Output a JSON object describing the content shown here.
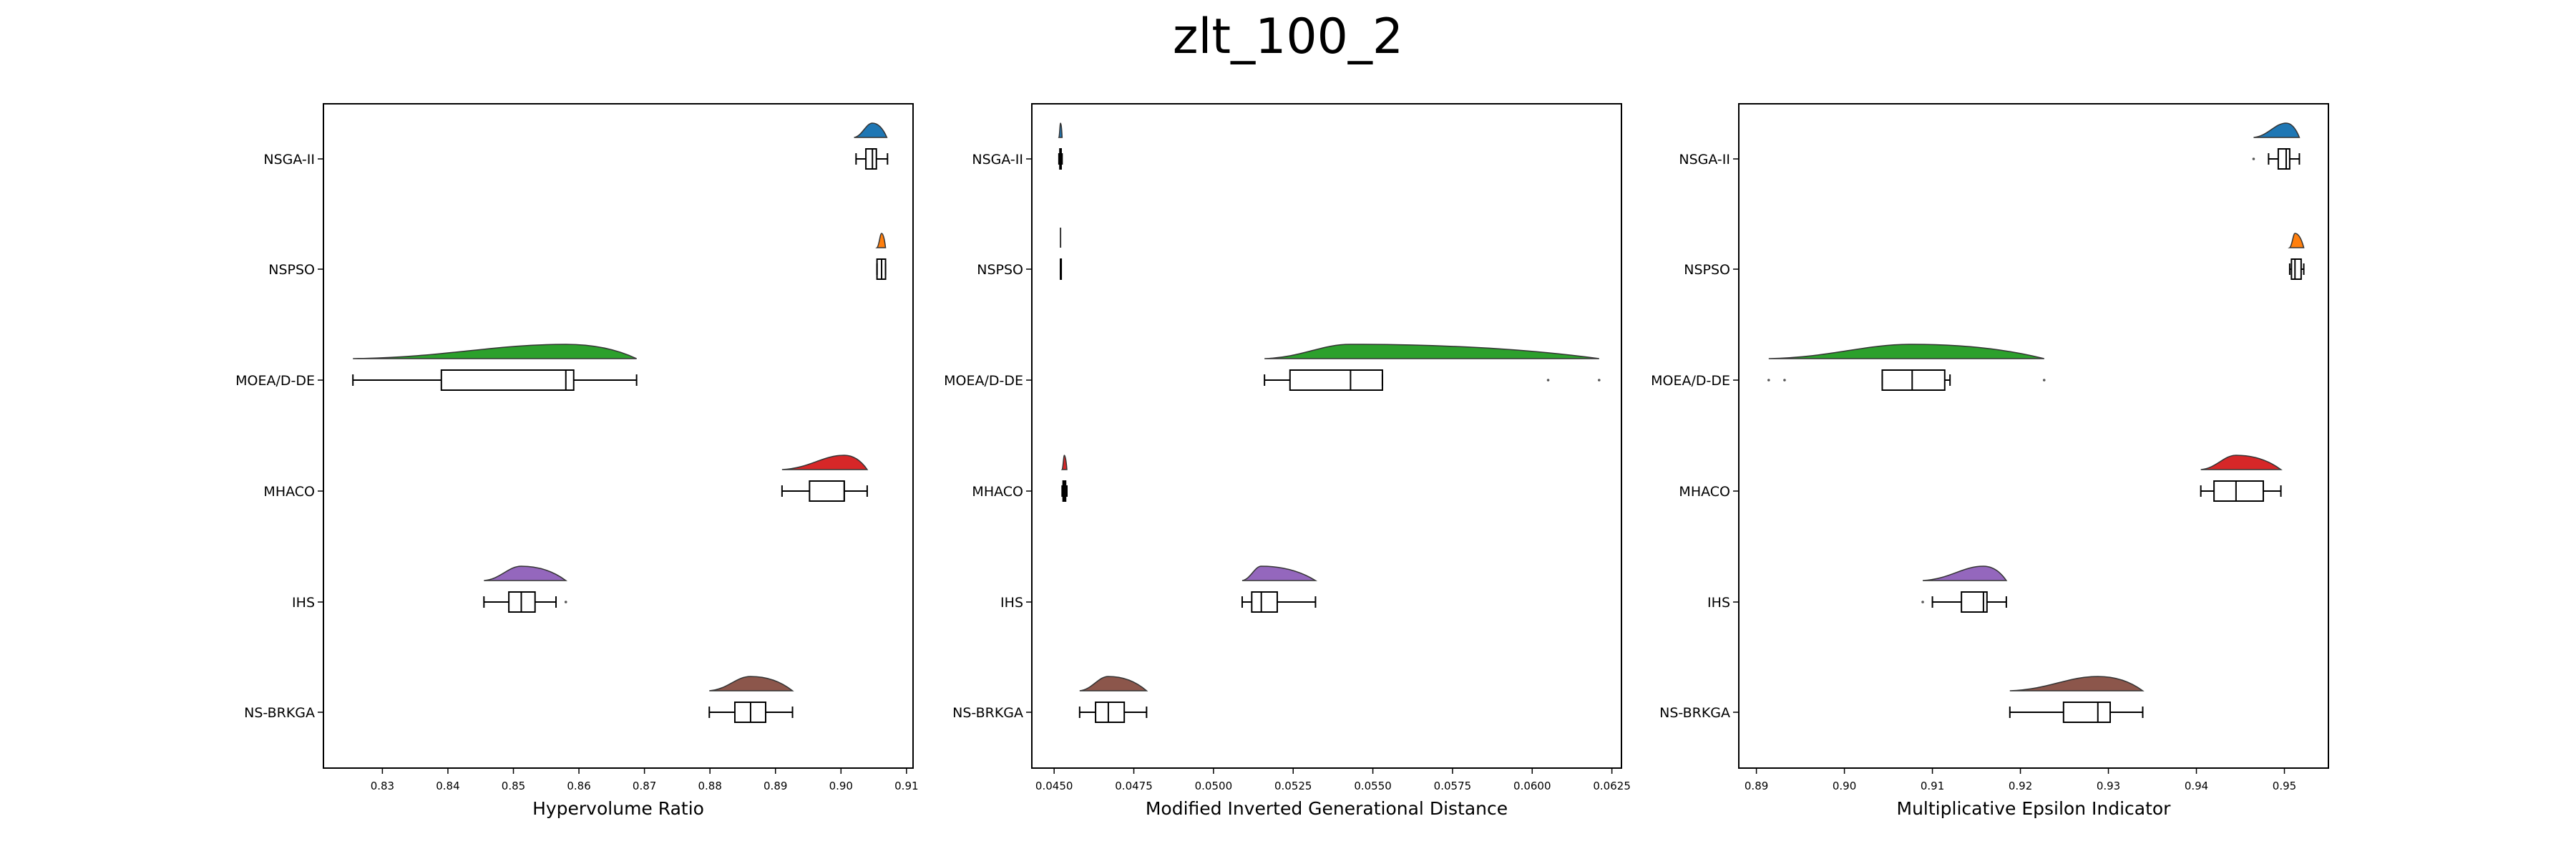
{
  "figure": {
    "title": "zlt_100_2"
  },
  "colors": {
    "NSGA-II": "#1f77b4",
    "NSPSO": "#ff7f0e",
    "MOEA/D-DE": "#2ca02c",
    "MHACO": "#d62728",
    "IHS": "#9467bd",
    "NS-BRKGA": "#8c564b"
  },
  "chart_data": [
    {
      "type": "boxplot",
      "xlabel": "Hypervolume Ratio",
      "ylabel": "",
      "xlim": [
        0.821,
        0.911
      ],
      "xticks": [
        0.83,
        0.84,
        0.85,
        0.86,
        0.87,
        0.88,
        0.89,
        0.9,
        0.91
      ],
      "xtick_labels": [
        "0.83",
        "0.84",
        "0.85",
        "0.86",
        "0.87",
        "0.88",
        "0.89",
        "0.90",
        "0.91"
      ],
      "grid": false,
      "categories": [
        "NSGA-II",
        "NSPSO",
        "MOEA/D-DE",
        "MHACO",
        "IHS",
        "NS-BRKGA"
      ],
      "series": [
        {
          "category": "NSGA-II",
          "whisker_low": 0.9023,
          "q1": 0.9038,
          "median": 0.9048,
          "q3": 0.9054,
          "whisker_high": 0.9071,
          "outliers": [],
          "violin": [
            0.902,
            0.907
          ]
        },
        {
          "category": "NSPSO",
          "whisker_low": 0.9055,
          "q1": 0.9055,
          "median": 0.9062,
          "q3": 0.9068,
          "whisker_high": 0.9068,
          "outliers": [],
          "violin": [
            0.9055,
            0.9068
          ]
        },
        {
          "category": "MOEA/D-DE",
          "whisker_low": 0.8255,
          "q1": 0.839,
          "median": 0.858,
          "q3": 0.8592,
          "whisker_high": 0.8688,
          "outliers": [],
          "violin": [
            0.8255,
            0.8688
          ]
        },
        {
          "category": "MHACO",
          "whisker_low": 0.891,
          "q1": 0.8952,
          "median": 0.9005,
          "q3": 0.9005,
          "whisker_high": 0.904,
          "outliers": [],
          "violin": [
            0.891,
            0.904
          ]
        },
        {
          "category": "IHS",
          "whisker_low": 0.8455,
          "q1": 0.8493,
          "median": 0.8512,
          "q3": 0.8533,
          "whisker_high": 0.8565,
          "outliers": [
            0.858
          ],
          "violin": [
            0.8455,
            0.858
          ]
        },
        {
          "category": "NS-BRKGA",
          "whisker_low": 0.8799,
          "q1": 0.8838,
          "median": 0.8862,
          "q3": 0.8885,
          "whisker_high": 0.8926,
          "outliers": [],
          "violin": [
            0.8799,
            0.8926
          ]
        }
      ]
    },
    {
      "type": "boxplot",
      "xlabel": "Modified Inverted Generational Distance",
      "ylabel": "",
      "xlim": [
        0.0443,
        0.0628
      ],
      "xticks": [
        0.045,
        0.0475,
        0.05,
        0.0525,
        0.055,
        0.0575,
        0.06,
        0.0625
      ],
      "xtick_labels": [
        "0.0450",
        "0.0475",
        "0.0500",
        "0.0525",
        "0.0550",
        "0.0575",
        "0.0600",
        "0.0625"
      ],
      "grid": false,
      "categories": [
        "NSGA-II",
        "NSPSO",
        "MOEA/D-DE",
        "MHACO",
        "IHS",
        "NS-BRKGA"
      ],
      "series": [
        {
          "category": "NSGA-II",
          "whisker_low": 0.04515,
          "q1": 0.04518,
          "median": 0.0452,
          "q3": 0.04522,
          "whisker_high": 0.04525,
          "outliers": [],
          "violin": [
            0.04515,
            0.04525
          ]
        },
        {
          "category": "NSPSO",
          "whisker_low": 0.0452,
          "q1": 0.0452,
          "median": 0.0452,
          "q3": 0.0452,
          "whisker_high": 0.0452,
          "outliers": [],
          "violin": [
            0.0452,
            0.0452
          ]
        },
        {
          "category": "MOEA/D-DE",
          "whisker_low": 0.0516,
          "q1": 0.0524,
          "median": 0.0543,
          "q3": 0.0553,
          "whisker_high": 0.0553,
          "outliers": [
            0.0605,
            0.0621
          ],
          "violin": [
            0.0516,
            0.0621
          ]
        },
        {
          "category": "MHACO",
          "whisker_low": 0.04525,
          "q1": 0.04528,
          "median": 0.04532,
          "q3": 0.04536,
          "whisker_high": 0.0454,
          "outliers": [],
          "violin": [
            0.04525,
            0.0454
          ]
        },
        {
          "category": "IHS",
          "whisker_low": 0.0509,
          "q1": 0.0512,
          "median": 0.0515,
          "q3": 0.052,
          "whisker_high": 0.0532,
          "outliers": [],
          "violin": [
            0.0509,
            0.0532
          ]
        },
        {
          "category": "NS-BRKGA",
          "whisker_low": 0.0458,
          "q1": 0.0463,
          "median": 0.0467,
          "q3": 0.0472,
          "whisker_high": 0.0479,
          "outliers": [],
          "violin": [
            0.0458,
            0.0479
          ]
        }
      ]
    },
    {
      "type": "boxplot",
      "xlabel": "Multiplicative Epsilon Indicator",
      "ylabel": "",
      "xlim": [
        0.888,
        0.955
      ],
      "xticks": [
        0.89,
        0.9,
        0.91,
        0.92,
        0.93,
        0.94,
        0.95
      ],
      "xtick_labels": [
        "0.89",
        "0.90",
        "0.91",
        "0.92",
        "0.93",
        "0.94",
        "0.95"
      ],
      "grid": false,
      "categories": [
        "NSGA-II",
        "NSPSO",
        "MOEA/D-DE",
        "MHACO",
        "IHS",
        "NS-BRKGA"
      ],
      "series": [
        {
          "category": "NSGA-II",
          "whisker_low": 0.9482,
          "q1": 0.9493,
          "median": 0.9502,
          "q3": 0.9506,
          "whisker_high": 0.9517,
          "outliers": [
            0.9465
          ],
          "violin": [
            0.9465,
            0.9517
          ]
        },
        {
          "category": "NSPSO",
          "whisker_low": 0.9506,
          "q1": 0.9508,
          "median": 0.9512,
          "q3": 0.9519,
          "whisker_high": 0.9522,
          "outliers": [],
          "violin": [
            0.9506,
            0.9522
          ]
        },
        {
          "category": "MOEA/D-DE",
          "whisker_low": 0.9043,
          "q1": 0.9043,
          "median": 0.9077,
          "q3": 0.9114,
          "whisker_high": 0.912,
          "outliers": [
            0.8914,
            0.8932,
            0.9227
          ],
          "violin": [
            0.8914,
            0.9227
          ]
        },
        {
          "category": "MHACO",
          "whisker_low": 0.9405,
          "q1": 0.942,
          "median": 0.9445,
          "q3": 0.9476,
          "whisker_high": 0.9496,
          "outliers": [],
          "violin": [
            0.9405,
            0.9496
          ]
        },
        {
          "category": "IHS",
          "whisker_low": 0.91,
          "q1": 0.9133,
          "median": 0.9158,
          "q3": 0.9162,
          "whisker_high": 0.9184,
          "outliers": [
            0.9089
          ],
          "violin": [
            0.9089,
            0.9184
          ]
        },
        {
          "category": "NS-BRKGA",
          "whisker_low": 0.9188,
          "q1": 0.9249,
          "median": 0.9288,
          "q3": 0.9302,
          "whisker_high": 0.9339,
          "outliers": [],
          "violin": [
            0.9188,
            0.9339
          ]
        }
      ]
    }
  ]
}
